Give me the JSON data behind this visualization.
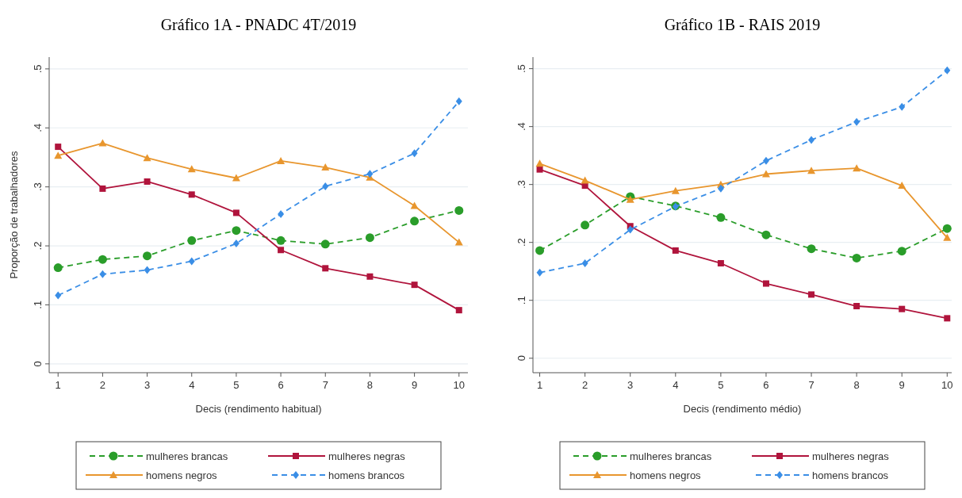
{
  "chart_data": [
    {
      "type": "line",
      "title": "Gráfico 1A - PNADC 4T/2019",
      "xlabel": "Decis (rendimento habitual)",
      "ylabel": "Proporção de trabalhadores",
      "x": [
        1,
        2,
        3,
        4,
        5,
        6,
        7,
        8,
        9,
        10
      ],
      "xlim": [
        0.8,
        10.2
      ],
      "xticks": [
        1,
        2,
        3,
        4,
        5,
        6,
        7,
        8,
        9,
        10
      ],
      "ylim": [
        -0.015,
        0.52
      ],
      "yticks": [
        {
          "value": 0,
          "label": "0"
        },
        {
          "value": 0.1,
          "label": ".1"
        },
        {
          "value": 0.2,
          "label": ".2"
        },
        {
          "value": 0.3,
          "label": ".3"
        },
        {
          "value": 0.4,
          "label": ".4"
        },
        {
          "value": 0.5,
          "label": ".5"
        }
      ],
      "grid": "y",
      "legend": "bottom",
      "series": [
        {
          "name": "mulheres brancas",
          "color": "#2a9d2a",
          "marker": "circle",
          "line_style": "dashed",
          "values": [
            0.163,
            0.177,
            0.183,
            0.209,
            0.226,
            0.209,
            0.203,
            0.214,
            0.242,
            0.26
          ]
        },
        {
          "name": "mulheres negras",
          "color": "#b0143c",
          "marker": "square",
          "line_style": "solid",
          "values": [
            0.368,
            0.297,
            0.309,
            0.287,
            0.256,
            0.193,
            0.162,
            0.148,
            0.134,
            0.091
          ]
        },
        {
          "name": "homens negros",
          "color": "#e8962e",
          "marker": "triangle",
          "line_style": "solid",
          "values": [
            0.353,
            0.374,
            0.349,
            0.33,
            0.315,
            0.344,
            0.333,
            0.316,
            0.268,
            0.206
          ]
        },
        {
          "name": "homens brancos",
          "color": "#3a8ee6",
          "marker": "diamond",
          "line_style": "dashed",
          "values": [
            0.116,
            0.152,
            0.159,
            0.174,
            0.204,
            0.254,
            0.301,
            0.322,
            0.357,
            0.445
          ]
        }
      ]
    },
    {
      "type": "line",
      "title": "Gráfico 1B - RAIS 2019",
      "xlabel": "Decis (rendimento médio)",
      "x": [
        1,
        2,
        3,
        4,
        5,
        6,
        7,
        8,
        9,
        10
      ],
      "xlim": [
        0.85,
        10.1
      ],
      "xticks": [
        1,
        2,
        3,
        4,
        5,
        6,
        7,
        8,
        9,
        10
      ],
      "ylim": [
        -0.025,
        0.52
      ],
      "yticks": [
        {
          "value": 0,
          "label": "0"
        },
        {
          "value": 0.1,
          "label": ".1"
        },
        {
          "value": 0.2,
          "label": ".2"
        },
        {
          "value": 0.3,
          "label": ".3"
        },
        {
          "value": 0.4,
          "label": ".4"
        },
        {
          "value": 0.5,
          "label": ".5"
        }
      ],
      "grid": "y",
      "legend": "bottom",
      "series": [
        {
          "name": "mulheres brancas",
          "color": "#2a9d2a",
          "marker": "circle",
          "line_style": "dashed",
          "values": [
            0.186,
            0.23,
            0.279,
            0.263,
            0.243,
            0.213,
            0.189,
            0.173,
            0.185,
            0.224
          ]
        },
        {
          "name": "mulheres negras",
          "color": "#b0143c",
          "marker": "square",
          "line_style": "solid",
          "values": [
            0.326,
            0.298,
            0.228,
            0.186,
            0.164,
            0.129,
            0.11,
            0.09,
            0.085,
            0.069
          ]
        },
        {
          "name": "homens negros",
          "color": "#e8962e",
          "marker": "triangle",
          "line_style": "solid",
          "values": [
            0.336,
            0.307,
            0.274,
            0.289,
            0.3,
            0.318,
            0.324,
            0.328,
            0.298,
            0.208
          ]
        },
        {
          "name": "homens brancos",
          "color": "#3a8ee6",
          "marker": "diamond",
          "line_style": "dashed",
          "values": [
            0.148,
            0.164,
            0.222,
            0.262,
            0.293,
            0.341,
            0.377,
            0.408,
            0.434,
            0.497
          ]
        }
      ]
    }
  ]
}
